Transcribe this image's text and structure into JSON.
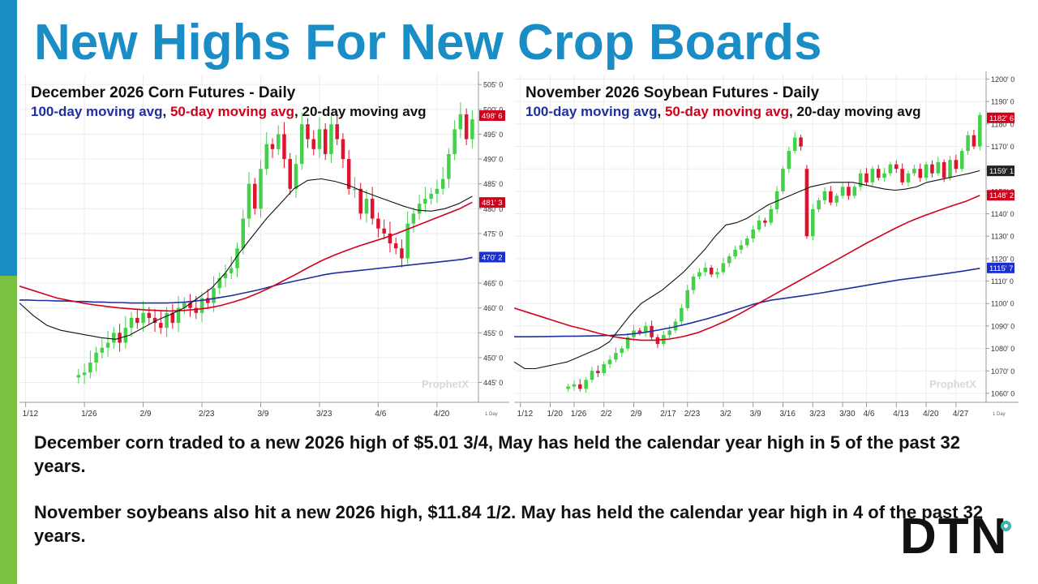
{
  "slide": {
    "title": "New Highs For New Crop Boards",
    "paragraph1": "December corn traded to a new 2026 high of $5.01 3/4, May has held the calendar year high in 5 of the past 32 years.",
    "paragraph2": "November soybeans also hit a new 2026 high, $11.84 1/2. May has held the calendar year high in 4 of the past 32 years.",
    "logo_text": "DTN",
    "colors": {
      "title": "#1a8dc6",
      "left_bar_top": "#1a8dc6",
      "left_bar_bottom": "#7ac143",
      "logo_accent": "#3ab5a8"
    }
  },
  "chart_data": [
    {
      "type": "candlestick",
      "title": "December 2026 Corn Futures - Daily",
      "subtitle_parts": [
        {
          "text": "100-day moving avg",
          "color": "#1f2fa0"
        },
        {
          "text": ", ",
          "color": "#111111"
        },
        {
          "text": "50-day moving avg",
          "color": "#d0021b"
        },
        {
          "text": ", ",
          "color": "#111111"
        },
        {
          "text": "20-day moving avg",
          "color": "#111111"
        }
      ],
      "y_ticks": [
        "505' 0",
        "500' 0",
        "495' 0",
        "490' 0",
        "485' 0",
        "480' 0",
        "475' 0",
        "470' 0",
        "465' 0",
        "460' 0",
        "455' 0",
        "450' 0",
        "445' 0"
      ],
      "y_tick_values": [
        505,
        500,
        495,
        490,
        485,
        480,
        475,
        470,
        465,
        460,
        455,
        450,
        445
      ],
      "ylim": [
        441,
        507
      ],
      "x_labels": [
        "1/12",
        "1/26",
        "2/9",
        "2/23",
        "3/9",
        "3/23",
        "4/6",
        "4/20"
      ],
      "x_label_index": [
        0,
        10,
        20,
        30,
        40,
        50,
        60,
        70
      ],
      "bar_count": 77,
      "closes": [
        446.5,
        447,
        449,
        451,
        452,
        453,
        455,
        453,
        456,
        458,
        457,
        459,
        458,
        457,
        456,
        459,
        457,
        460,
        461,
        460,
        459,
        462,
        461,
        464,
        466,
        467,
        468,
        472,
        478,
        485,
        480,
        488,
        493,
        492,
        495,
        490,
        484,
        489,
        497,
        494,
        492,
        496,
        491,
        497,
        494,
        490,
        484,
        484,
        479,
        482,
        478,
        476,
        475,
        473,
        472,
        470,
        477,
        479,
        481,
        482,
        483,
        484,
        486,
        491,
        496,
        499,
        494,
        498
      ],
      "opens": [
        446,
        446.5,
        447,
        449,
        451,
        452,
        453,
        455,
        453,
        456,
        458,
        457,
        459,
        458,
        457,
        456,
        459,
        457,
        460,
        461,
        460,
        459,
        462,
        461,
        464,
        466,
        467,
        468,
        472,
        478,
        485,
        480,
        488,
        493,
        492,
        495,
        490,
        484,
        489,
        497,
        494,
        492,
        496,
        491,
        497,
        494,
        490,
        484,
        484,
        479,
        482,
        478,
        476,
        475,
        473,
        472,
        470,
        477,
        479,
        481,
        482,
        483,
        484,
        486,
        491,
        496,
        499,
        494
      ],
      "ma100": [
        461.6,
        461.6,
        461.5,
        461.5,
        461.4,
        461.4,
        461.3,
        461.3,
        461.2,
        461.2,
        461.1,
        461.1,
        461,
        461,
        461,
        461,
        461,
        461.1,
        461.2,
        461.4,
        461.6,
        461.9,
        462.2,
        462.5,
        462.9,
        463.3,
        463.7,
        464.2,
        464.7,
        465.1,
        465.5,
        465.9,
        466.3,
        466.7,
        467,
        467.2,
        467.4,
        467.6,
        467.8,
        468,
        468.2,
        468.4,
        468.6,
        468.8,
        469,
        469.2,
        469.4,
        469.6,
        469.8,
        470.2
      ],
      "ma50": [
        464.4,
        463.6,
        462.8,
        462,
        461.5,
        461,
        460.6,
        460.3,
        460,
        459.8,
        459.6,
        459.5,
        459.4,
        459.5,
        459.7,
        460,
        460.5,
        461.2,
        462,
        463,
        464.2,
        465.5,
        466.8,
        468.2,
        469.5,
        470.6,
        471.6,
        472.5,
        473.3,
        474.1,
        475,
        476,
        477,
        478,
        479,
        480,
        481.3
      ],
      "ma20": [
        461,
        458.5,
        456.5,
        455.5,
        455,
        454.5,
        454,
        453.7,
        454.5,
        456,
        457.5,
        458.7,
        460,
        462,
        464,
        467,
        471,
        474.5,
        478,
        481,
        484,
        485.7,
        486,
        485.5,
        484.7,
        483.5,
        482.5,
        481.5,
        480.5,
        479.7,
        479.5,
        480,
        481,
        482.5
      ],
      "price_tags": [
        {
          "value": 498.75,
          "label": "498' 6",
          "color": "#d0021b"
        },
        {
          "value": 481.25,
          "label": "481' 3",
          "color": "#d0021b"
        },
        {
          "value": 470.25,
          "label": "470' 2",
          "color": "#1a2fd0"
        }
      ],
      "footer_tick": "1 Day",
      "watermark": "ProphetX",
      "colors": {
        "up": "#44d04a",
        "down": "#e0132e",
        "ma100": "#1f2fa0",
        "ma50": "#d0021b",
        "ma20": "#111111"
      }
    },
    {
      "type": "candlestick",
      "title": "November 2026 Soybean Futures - Daily",
      "subtitle_parts": [
        {
          "text": "100-day moving avg",
          "color": "#1f2fa0"
        },
        {
          "text": ", ",
          "color": "#111111"
        },
        {
          "text": "50-day moving avg",
          "color": "#d0021b"
        },
        {
          "text": ", ",
          "color": "#111111"
        },
        {
          "text": "20-day moving avg",
          "color": "#111111"
        }
      ],
      "y_ticks": [
        "1200' 0",
        "1190' 0",
        "1180' 0",
        "1170' 0",
        "1160' 0",
        "1150' 0",
        "1140' 0",
        "1130' 0",
        "1120' 0",
        "1110' 0",
        "1100' 0",
        "1090' 0",
        "1080' 0",
        "1070' 0",
        "1060' 0"
      ],
      "y_tick_values": [
        1200,
        1190,
        1180,
        1170,
        1160,
        1150,
        1140,
        1130,
        1120,
        1110,
        1100,
        1090,
        1080,
        1070,
        1060
      ],
      "ylim": [
        1056,
        1202
      ],
      "x_labels": [
        "1/12",
        "1/20",
        "1/26",
        "2/2",
        "2/9",
        "2/17",
        "2/23",
        "3/2",
        "3/9",
        "3/16",
        "3/23",
        "3/30",
        "4/6",
        "4/13",
        "4/20",
        "4/27"
      ],
      "x_label_index": [
        0,
        5,
        9,
        14,
        19,
        24,
        28,
        34,
        39,
        44,
        49,
        54,
        58,
        63,
        68,
        73
      ],
      "bar_count": 78,
      "closes": [
        1063,
        1064,
        1062,
        1066,
        1070,
        1069,
        1073,
        1075,
        1078,
        1080,
        1085,
        1088,
        1087,
        1090,
        1085,
        1082,
        1086,
        1088,
        1092,
        1098,
        1106,
        1112,
        1114,
        1116,
        1113,
        1114,
        1118,
        1121,
        1124,
        1126,
        1129,
        1133,
        1137,
        1136,
        1142,
        1150,
        1160,
        1168,
        1174,
        1170,
        1130,
        1142,
        1146,
        1150,
        1145,
        1148,
        1152,
        1148,
        1152,
        1158,
        1154,
        1160,
        1156,
        1158,
        1162,
        1160,
        1154,
        1158,
        1160,
        1156,
        1162,
        1158,
        1163,
        1156,
        1164,
        1160,
        1168,
        1175,
        1170,
        1184
      ],
      "opens": [
        1062,
        1063,
        1064,
        1062,
        1066,
        1070,
        1069,
        1073,
        1075,
        1078,
        1080,
        1085,
        1088,
        1087,
        1090,
        1085,
        1082,
        1086,
        1088,
        1092,
        1098,
        1106,
        1112,
        1114,
        1116,
        1113,
        1114,
        1118,
        1121,
        1124,
        1126,
        1129,
        1133,
        1137,
        1136,
        1142,
        1150,
        1160,
        1168,
        1174,
        1160,
        1130,
        1142,
        1146,
        1150,
        1145,
        1148,
        1152,
        1148,
        1152,
        1158,
        1154,
        1160,
        1156,
        1158,
        1162,
        1160,
        1154,
        1158,
        1160,
        1156,
        1162,
        1158,
        1163,
        1156,
        1164,
        1160,
        1168,
        1175,
        1170
      ],
      "ma100": [
        1085.2,
        1085.2,
        1085.3,
        1085.4,
        1085.5,
        1085.6,
        1085.8,
        1086.2,
        1087,
        1088.2,
        1089.6,
        1091.3,
        1093.2,
        1095.3,
        1097.6,
        1099.9,
        1101.5,
        1102.5,
        1103.5,
        1104.6,
        1105.8,
        1107,
        1108.2,
        1109.4,
        1110.6,
        1111.5,
        1112.5,
        1113.5,
        1114.5,
        1115.7
      ],
      "ma50": [
        1098,
        1096,
        1094,
        1092,
        1090,
        1088.5,
        1086.7,
        1085.3,
        1084.3,
        1083.7,
        1083.7,
        1084.2,
        1085.3,
        1087,
        1089.5,
        1092.3,
        1095.5,
        1099,
        1102.5,
        1106,
        1109.5,
        1113,
        1116.5,
        1120,
        1123.5,
        1127,
        1130.3,
        1133.5,
        1136.5,
        1139,
        1141.3,
        1143.5,
        1145.5,
        1148.2
      ],
      "ma20": [
        1074,
        1071,
        1071,
        1072,
        1073,
        1074,
        1076,
        1078,
        1080,
        1083,
        1089,
        1095,
        1100,
        1103,
        1106,
        1110,
        1114,
        1119,
        1124,
        1130,
        1135,
        1136,
        1138,
        1141,
        1144,
        1146,
        1148,
        1150,
        1152,
        1153,
        1154,
        1154,
        1154,
        1153,
        1152,
        1151,
        1150.5,
        1151,
        1152,
        1154,
        1155,
        1156,
        1157,
        1158,
        1159.2
      ],
      "price_tags": [
        {
          "value": 1182.75,
          "label": "1182' 6",
          "color": "#d0021b"
        },
        {
          "value": 1159.125,
          "label": "1159' 1",
          "color": "#222222"
        },
        {
          "value": 1148.25,
          "label": "1148' 2",
          "color": "#d0021b"
        },
        {
          "value": 1115.875,
          "label": "1115' 7",
          "color": "#1a2fd0"
        }
      ],
      "footer_tick": "1 Day",
      "watermark": "ProphetX",
      "colors": {
        "up": "#44d04a",
        "down": "#e0132e",
        "ma100": "#1f2fa0",
        "ma50": "#d0021b",
        "ma20": "#111111"
      }
    }
  ]
}
